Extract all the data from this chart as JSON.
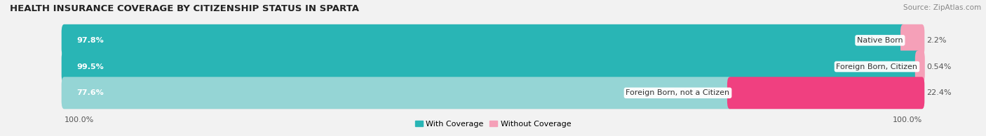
{
  "title": "HEALTH INSURANCE COVERAGE BY CITIZENSHIP STATUS IN SPARTA",
  "source": "Source: ZipAtlas.com",
  "categories": [
    "Native Born",
    "Foreign Born, Citizen",
    "Foreign Born, not a Citizen"
  ],
  "with_coverage": [
    97.8,
    99.5,
    77.6
  ],
  "without_coverage": [
    2.2,
    0.54,
    22.4
  ],
  "with_colors": [
    "#29b5b5",
    "#29b5b5",
    "#95d5d5"
  ],
  "without_colors": [
    "#f5a0b8",
    "#f5a0b8",
    "#f04080"
  ],
  "bg_color": "#f2f2f2",
  "bar_bg_color": "#e5e5e5",
  "title_fontsize": 9.5,
  "label_fontsize": 8,
  "pct_fontsize": 8,
  "tick_fontsize": 8,
  "legend_fontsize": 8,
  "left_pct_label": "100.0%",
  "right_pct_label": "100.0%"
}
